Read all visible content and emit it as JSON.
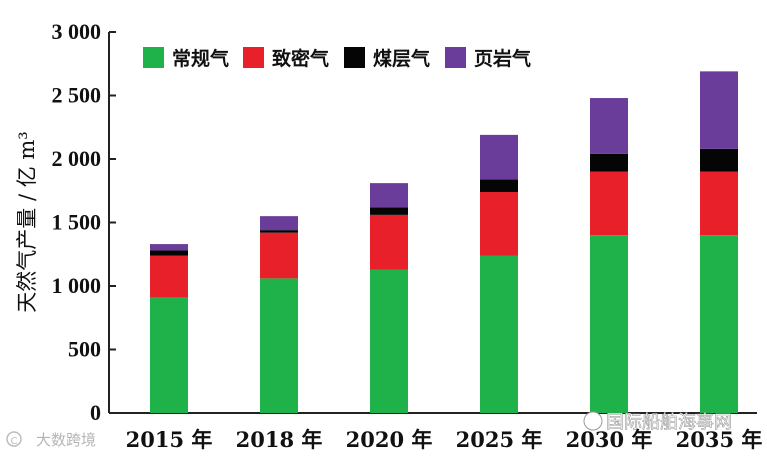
{
  "chart_data": {
    "type": "bar",
    "stacked": true,
    "categories": [
      "2015 年",
      "2018 年",
      "2020 年",
      "2025 年",
      "2030 年",
      "2035 年"
    ],
    "series": [
      {
        "name": "常规气",
        "color": "#1fb24a",
        "values": [
          910,
          1060,
          1130,
          1240,
          1400,
          1400
        ]
      },
      {
        "name": "致密气",
        "color": "#e8202a",
        "values": [
          330,
          360,
          430,
          500,
          500,
          500
        ]
      },
      {
        "name": "煤层气",
        "color": "#050505",
        "values": [
          40,
          20,
          60,
          100,
          140,
          180
        ]
      },
      {
        "name": "页岩气",
        "color": "#6a3d9a",
        "values": [
          50,
          110,
          190,
          350,
          440,
          610
        ]
      }
    ],
    "ylabel": "天然气产量 / 亿 m³",
    "ylim": [
      0,
      3000
    ],
    "yticks": [
      0,
      500,
      1000,
      1500,
      2000,
      2500,
      3000
    ],
    "ytick_labels": [
      "0",
      "500",
      "1 000",
      "1 500",
      "2 000",
      "2 500",
      "3 000"
    ],
    "grid": false,
    "legend_position": "top-left"
  },
  "watermarks": {
    "left": "大数跨境",
    "right": "国际船舶海事网"
  }
}
